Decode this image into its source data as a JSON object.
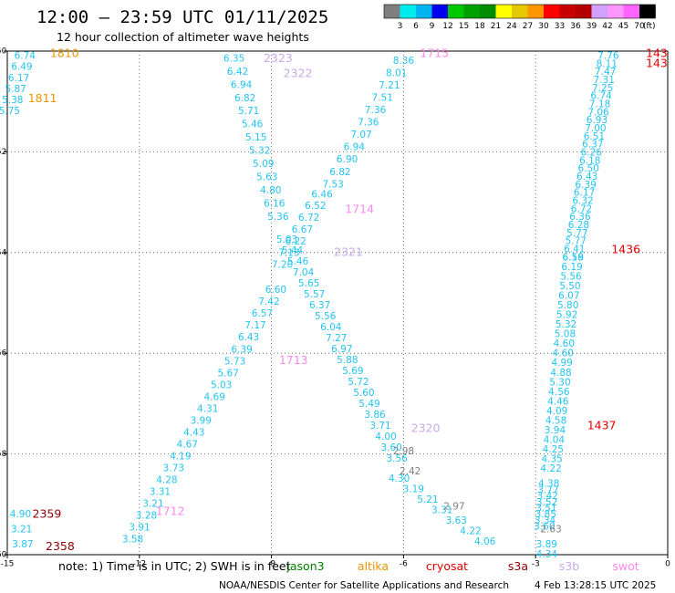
{
  "chart_data": {
    "type": "scatter",
    "title": "12:00 — 23:59 UTC 01/11/2025",
    "subtitle": "12 hour collection of altimeter wave heights",
    "xlim": [
      -15,
      0
    ],
    "ylim": [
      -60,
      -50
    ],
    "x_ticks": [
      -15,
      -12,
      -9,
      -6,
      -3,
      0
    ],
    "y_ticks": [
      -50,
      -52,
      -54,
      -56,
      -58,
      -60
    ],
    "grid": true,
    "colorbar": {
      "unit": "(ft)",
      "labels": [
        "3",
        "6",
        "9",
        "12",
        "15",
        "18",
        "21",
        "24",
        "27",
        "30",
        "33",
        "36",
        "39",
        "42",
        "45",
        "70"
      ],
      "colors": [
        "#7f7f7f",
        "#00eded",
        "#00b4f0",
        "#0000f0",
        "#00c800",
        "#00a000",
        "#008c00",
        "#ffff00",
        "#e6c800",
        "#ff9600",
        "#ff0000",
        "#c80000",
        "#b40000",
        "#d2a0ff",
        "#ff96ff",
        "#ff64ff",
        "#000000"
      ]
    },
    "tracks": [
      {
        "x0": -14.6,
        "y0": -50.1,
        "x1": -14.95,
        "y1": -51.2,
        "color": "#22c4f2",
        "values": [
          "6.74",
          "6.49",
          "6.17",
          "5.87",
          "5.38",
          "5.75"
        ]
      },
      {
        "x0": -9.85,
        "y0": -50.15,
        "x1": -8.85,
        "y1": -53.3,
        "color": "#22c4f2",
        "values": [
          "6.35",
          "6.42",
          "6.94",
          "6.82",
          "5.71",
          "5.46",
          "5.15",
          "5.32",
          "5.09",
          "5.63",
          "4.80",
          "6.16",
          "5.36"
        ]
      },
      {
        "x0": -8.65,
        "y0": -53.75,
        "x1": -6.15,
        "y1": -58.1,
        "color": "#22c4f2",
        "values": [
          "5.03",
          "5.44",
          "5.46",
          "7.04",
          "5.65",
          "5.57",
          "6.37",
          "5.56",
          "6.04",
          "7.27",
          "6.97",
          "5.88",
          "5.69",
          "5.72",
          "5.60",
          "5.49",
          "3.86",
          "3.71",
          "4.00",
          "3.60",
          "3.56"
        ]
      },
      {
        "x0": -6.1,
        "y0": -58.5,
        "x1": -4.15,
        "y1": -59.75,
        "color": "#22c4f2",
        "values": [
          "4.30",
          "3.19",
          "5.21",
          "3.31",
          "3.63",
          "4.22",
          "4.06"
        ]
      },
      {
        "x0": -6.0,
        "y0": -50.2,
        "x1": -7.6,
        "y1": -52.65,
        "color": "#22c4f2",
        "values": [
          "8.36",
          "8.01",
          "7.21",
          "7.51",
          "7.36",
          "7.36",
          "7.07",
          "6.94",
          "6.90",
          "6.82",
          "7.53"
        ]
      },
      {
        "x0": -7.85,
        "y0": -52.85,
        "x1": -8.75,
        "y1": -54.25,
        "color": "#22c4f2",
        "values": [
          "6.46",
          "6.52",
          "6.72",
          "6.67",
          "6.22",
          "7.13",
          "7.20"
        ]
      },
      {
        "x0": -8.9,
        "y0": -54.75,
        "x1": -12.15,
        "y1": -59.7,
        "color": "#22c4f2",
        "values": [
          "6.60",
          "7.42",
          "6.57",
          "7.17",
          "6.43",
          "6.39",
          "5.73",
          "5.67",
          "5.03",
          "4.69",
          "4.31",
          "3.99",
          "4.43",
          "4.67",
          "4.19",
          "3.73",
          "4.28",
          "3.31",
          "3.21",
          "3.28",
          "3.91",
          "3.58"
        ]
      },
      {
        "x0": -14.7,
        "y0": -59.2,
        "x1": -14.65,
        "y1": -59.8,
        "color": "#22c4f2",
        "values": [
          "4.90",
          "3.21",
          "3.87"
        ]
      },
      {
        "x0": -1.35,
        "y0": -50.1,
        "x1": -2.15,
        "y1": -54.1,
        "color": "#22c4f2",
        "values": [
          "7.76",
          "8.11",
          "7.47",
          "7.31",
          "7.25",
          "6.74",
          "7.18",
          "7.06",
          "6.93",
          "7.00",
          "6.51",
          "6.37",
          "6.26",
          "6.18",
          "6.50",
          "6.43",
          "6.39",
          "6.17",
          "6.32",
          "6.72",
          "6.36",
          "6.28",
          "5.77",
          "5.77",
          "6.41",
          "6.58"
        ]
      },
      {
        "x0": -2.15,
        "y0": -54.1,
        "x1": -2.65,
        "y1": -58.3,
        "color": "#22c4f2",
        "values": [
          "6.19",
          "6.19",
          "5.56",
          "5.50",
          "6.07",
          "5.80",
          "5.92",
          "5.32",
          "5.08",
          "4.60",
          "4.60",
          "4.99",
          "4.88",
          "5.30",
          "4.56",
          "4.46",
          "4.09",
          "4.58",
          "3.94",
          "4.04",
          "4.25",
          "4.35",
          "4.22"
        ]
      },
      {
        "x0": -2.7,
        "y0": -58.6,
        "x1": -2.8,
        "y1": -59.45,
        "color": "#22c4f2",
        "values": [
          "4.38",
          "3.77",
          "3.42",
          "3.52",
          "3.51",
          "3.85",
          "3.34",
          "3.60"
        ]
      },
      {
        "x0": -2.75,
        "y0": -59.8,
        "x1": -2.75,
        "y1": -60.0,
        "color": "#22c4f2",
        "values": [
          "3.89",
          "4.34"
        ]
      }
    ],
    "extra_points": [
      {
        "x": -6.0,
        "y": -57.95,
        "v": "2.98",
        "color": "#7f7f7f"
      },
      {
        "x": -5.85,
        "y": -58.35,
        "v": "2.42",
        "color": "#7f7f7f"
      },
      {
        "x": -4.85,
        "y": -59.05,
        "v": "2.97",
        "color": "#7f7f7f"
      },
      {
        "x": -2.65,
        "y": -59.5,
        "v": "2.63",
        "color": "#7f7f7f"
      }
    ],
    "pass_labels": [
      {
        "text": "1810",
        "x": -13.7,
        "y": -50.05,
        "color": "#e69600"
      },
      {
        "text": "1811",
        "x": -14.2,
        "y": -50.95,
        "color": "#e69600"
      },
      {
        "text": "2323",
        "x": -8.85,
        "y": -50.15,
        "color": "#c8aae6"
      },
      {
        "text": "2322",
        "x": -8.4,
        "y": -50.45,
        "color": "#c8aae6"
      },
      {
        "text": "1715",
        "x": -5.3,
        "y": -50.05,
        "color": "#ff88ee"
      },
      {
        "text": "1714",
        "x": -7.0,
        "y": -53.15,
        "color": "#ff88ee"
      },
      {
        "text": "2321",
        "x": -7.25,
        "y": -54.0,
        "color": "#c8aae6"
      },
      {
        "text": "1713",
        "x": -8.5,
        "y": -56.15,
        "color": "#ff88ee"
      },
      {
        "text": "2320",
        "x": -5.5,
        "y": -57.5,
        "color": "#c8aae6"
      },
      {
        "text": "1712",
        "x": -11.3,
        "y": -59.15,
        "color": "#ff88ee"
      },
      {
        "text": "2359",
        "x": -14.1,
        "y": -59.2,
        "color": "#8b0000"
      },
      {
        "text": "2358",
        "x": -13.8,
        "y": -59.85,
        "color": "#8b0000"
      },
      {
        "text": "1436",
        "x": -0.95,
        "y": -53.95,
        "color": "#e60000"
      },
      {
        "text": "1437",
        "x": -1.5,
        "y": -57.45,
        "color": "#e60000"
      },
      {
        "text": "143",
        "x": -0.25,
        "y": -50.05,
        "color": "#e60000"
      },
      {
        "text": "143",
        "x": -0.25,
        "y": -50.25,
        "color": "#e60000"
      }
    ]
  },
  "note": {
    "prefix": "note:  1) Time is in UTC;  2) SWH is in feet",
    "satellites": [
      {
        "name": "jason3",
        "color": "#008000"
      },
      {
        "name": "altika",
        "color": "#e69600"
      },
      {
        "name": "cryosat",
        "color": "#e60000"
      },
      {
        "name": "s3a",
        "color": "#8b0000"
      },
      {
        "name": "s3b",
        "color": "#c8aae6"
      },
      {
        "name": "swot",
        "color": "#ff88ee"
      }
    ]
  },
  "footer": {
    "credit": "NOAA/NESDIS Center for Satellite Applications and Research",
    "timestamp": "4 Feb 13:28:15 UTC 2025"
  }
}
